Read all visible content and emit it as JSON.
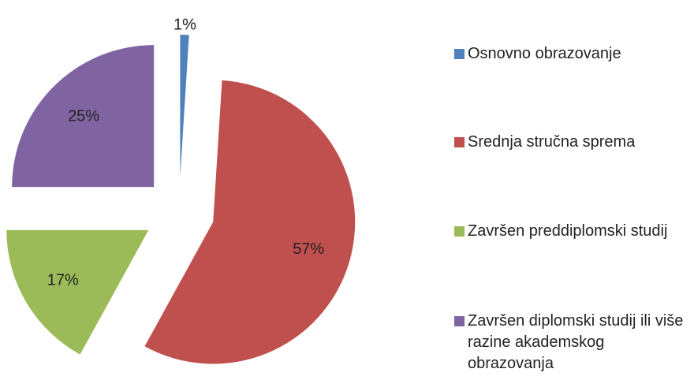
{
  "chart_data": {
    "type": "pie",
    "categories": [
      "Osnovno obrazovanje",
      "Srednja stručna sprema",
      "Završen preddiplomski studij",
      "Završen diplomski studij ili više razine akademskog obrazovanja"
    ],
    "values": [
      1,
      57,
      17,
      25
    ],
    "value_labels": [
      "1%",
      "57%",
      "17%",
      "25%"
    ],
    "colors": [
      "#4f81bd",
      "#c0504d",
      "#9bbb59",
      "#8064a2"
    ],
    "exploded": true,
    "legend": "right"
  }
}
